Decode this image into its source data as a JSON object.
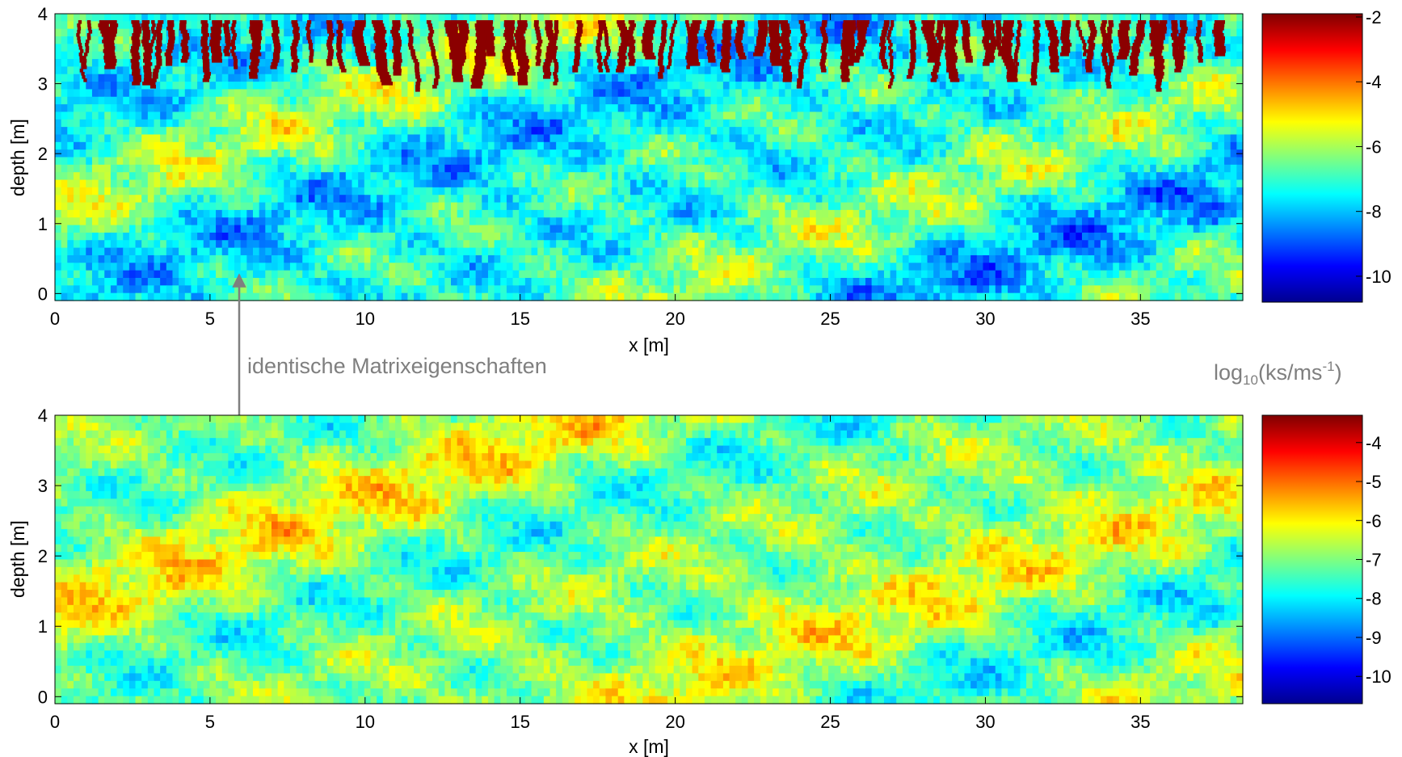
{
  "chart_data": [
    {
      "type": "heatmap",
      "title": "",
      "xlabel": "x [m]",
      "ylabel": "depth [m]",
      "xlim": [
        0,
        38.3
      ],
      "ylim": [
        -0.1,
        4
      ],
      "x_ticks": [
        0,
        5,
        10,
        15,
        20,
        25,
        30,
        35
      ],
      "y_ticks": [
        0,
        1,
        2,
        3,
        4
      ],
      "colorbar": {
        "range": [
          -10.8,
          -1.9
        ],
        "ticks": [
          -2,
          -4,
          -6,
          -8,
          -10
        ],
        "colormap": "jet"
      },
      "field": {
        "matrix_mean": -7.1,
        "matrix_spread": 1.5
      },
      "overlay": {
        "description": "dark red vertical preferential flow paths from surface",
        "value": -2,
        "depth_range": [
          2.9,
          4.0
        ],
        "color": "#8b0000"
      }
    },
    {
      "type": "heatmap",
      "title": "",
      "xlabel": "x [m]",
      "ylabel": "depth [m]",
      "xlim": [
        0,
        38.3
      ],
      "ylim": [
        -0.1,
        4
      ],
      "x_ticks": [
        0,
        5,
        10,
        15,
        20,
        25,
        30,
        35
      ],
      "y_ticks": [
        0,
        1,
        2,
        3,
        4
      ],
      "colorbar": {
        "range": [
          -10.7,
          -3.3
        ],
        "ticks": [
          -4,
          -5,
          -6,
          -7,
          -8,
          -9,
          -10
        ],
        "colormap": "jet"
      },
      "field": {
        "matrix_mean": -6.9,
        "matrix_spread": 1.1
      }
    }
  ],
  "annotation": {
    "text": "identische Matrixeigenschaften",
    "arrow": "double-headed"
  },
  "colorbar_unit": {
    "base": "log",
    "sub": "10",
    "mid": "(ks/ms",
    "sup": "-1",
    "end": ")"
  },
  "colors": {
    "annotation_gray": "#7f7f7f",
    "flowpath_red": "#8b0000"
  }
}
